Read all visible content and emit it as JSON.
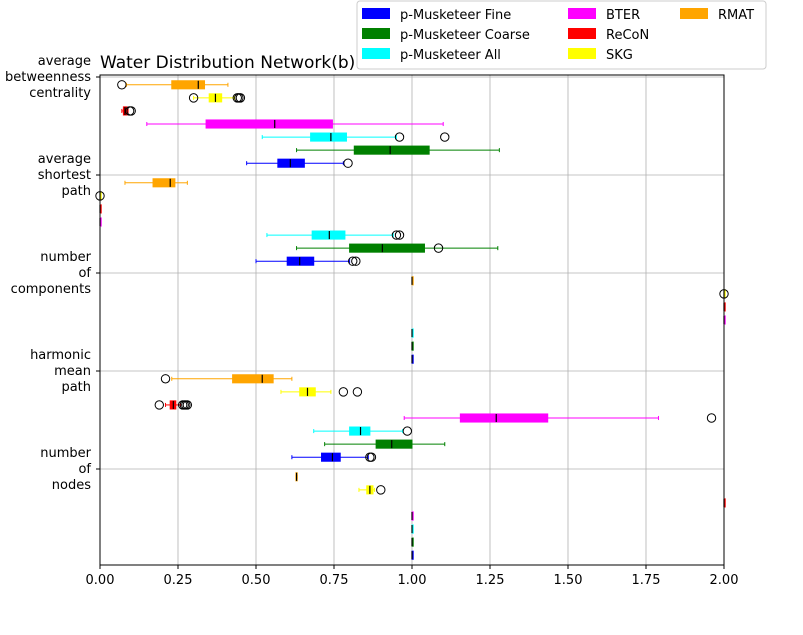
{
  "chart_data": {
    "type": "boxplot",
    "title": "Water Distribution Network(b)",
    "xlabel": "",
    "ylabel": "",
    "xlim": [
      0,
      2
    ],
    "xticks": [
      "0.00",
      "0.25",
      "0.50",
      "0.75",
      "1.00",
      "1.25",
      "1.50",
      "1.75",
      "2.00"
    ],
    "grid": true,
    "legend_position": "top-right, above axes",
    "series": [
      {
        "name": "p-Musketeer Fine",
        "color": "#0000ff"
      },
      {
        "name": "p-Musketeer Coarse",
        "color": "#008000"
      },
      {
        "name": "p-Musketeer All",
        "color": "#00ffff"
      },
      {
        "name": "BTER",
        "color": "#ff00ff"
      },
      {
        "name": "ReCoN",
        "color": "#ff0000"
      },
      {
        "name": "SKG",
        "color": "#ffff00"
      },
      {
        "name": "RMAT",
        "color": "#ffa500"
      }
    ],
    "groups": [
      {
        "label": "average betweenness centrality",
        "label_lines": [
          "average",
          "betweenness",
          "centrality"
        ],
        "boxes": [
          {
            "series": "RMAT",
            "lw": 0.085,
            "q1": 0.23,
            "med": 0.315,
            "q3": 0.335,
            "hw": 0.41,
            "out": [
              0.07
            ]
          },
          {
            "series": "SKG",
            "lw": 0.3,
            "q1": 0.35,
            "med": 0.37,
            "q3": 0.39,
            "hw": 0.43,
            "out": [
              0.3,
              0.44,
              0.445,
              0.45
            ]
          },
          {
            "series": "ReCoN",
            "lw": 0.07,
            "q1": 0.075,
            "med": 0.08,
            "q3": 0.087,
            "hw": 0.09,
            "out": [
              0.095,
              0.1
            ]
          },
          {
            "series": "BTER",
            "lw": 0.15,
            "q1": 0.34,
            "med": 0.56,
            "q3": 0.745,
            "hw": 1.1,
            "out": []
          },
          {
            "series": "p-Musketeer All",
            "lw": 0.52,
            "q1": 0.675,
            "med": 0.74,
            "q3": 0.79,
            "hw": 0.95,
            "out": [
              0.96,
              1.105
            ]
          },
          {
            "series": "p-Musketeer Coarse",
            "lw": 0.63,
            "q1": 0.815,
            "med": 0.93,
            "q3": 1.055,
            "hw": 1.28,
            "out": []
          },
          {
            "series": "p-Musketeer Fine",
            "lw": 0.47,
            "q1": 0.57,
            "med": 0.61,
            "q3": 0.655,
            "hw": 0.78,
            "out": [
              0.795
            ]
          }
        ]
      },
      {
        "label": "average shortest path",
        "label_lines": [
          "average",
          "shortest",
          "path"
        ],
        "boxes": [
          {
            "series": "RMAT",
            "lw": 0.08,
            "q1": 0.17,
            "med": 0.225,
            "q3": 0.24,
            "hw": 0.28,
            "out": []
          },
          {
            "series": "SKG",
            "lw": 0.0,
            "q1": 0.0,
            "med": 0.0,
            "q3": 0.0,
            "hw": 0.0,
            "out": [
              0.0
            ]
          },
          {
            "series": "ReCoN",
            "lw": 0.0,
            "q1": 0.0,
            "med": 0.0,
            "q3": 0.001,
            "hw": 0.001,
            "out": []
          },
          {
            "series": "BTER",
            "lw": 0.0,
            "q1": 0.0,
            "med": 0.0,
            "q3": 0.001,
            "hw": 0.001,
            "out": []
          },
          {
            "series": "p-Musketeer All",
            "lw": 0.535,
            "q1": 0.68,
            "med": 0.735,
            "q3": 0.785,
            "hw": 0.94,
            "out": [
              0.95,
              0.96
            ]
          },
          {
            "series": "p-Musketeer Coarse",
            "lw": 0.63,
            "q1": 0.8,
            "med": 0.905,
            "q3": 1.04,
            "hw": 1.275,
            "out": [
              1.085
            ]
          },
          {
            "series": "p-Musketeer Fine",
            "lw": 0.5,
            "q1": 0.6,
            "med": 0.64,
            "q3": 0.685,
            "hw": 0.8,
            "out": [
              0.81,
              0.82
            ]
          }
        ]
      },
      {
        "label": "number of components",
        "label_lines": [
          "number",
          "of",
          "components"
        ],
        "boxes": [
          {
            "series": "RMAT",
            "lw": 1.0,
            "q1": 1.0,
            "med": 1.0,
            "q3": 1.001,
            "hw": 1.001,
            "out": []
          },
          {
            "series": "SKG",
            "lw": 2.0,
            "q1": 2.0,
            "med": 2.0,
            "q3": 2.0,
            "hw": 2.0,
            "out": [
              2.0
            ]
          },
          {
            "series": "ReCoN",
            "lw": 2.0,
            "q1": 2.0,
            "med": 2.0,
            "q3": 2.001,
            "hw": 2.001,
            "out": []
          },
          {
            "series": "BTER",
            "lw": 2.0,
            "q1": 2.0,
            "med": 2.0,
            "q3": 2.001,
            "hw": 2.001,
            "out": []
          },
          {
            "series": "p-Musketeer All",
            "lw": 1.0,
            "q1": 1.0,
            "med": 1.0,
            "q3": 1.001,
            "hw": 1.001,
            "out": []
          },
          {
            "series": "p-Musketeer Coarse",
            "lw": 1.0,
            "q1": 1.0,
            "med": 1.0,
            "q3": 1.001,
            "hw": 1.001,
            "out": []
          },
          {
            "series": "p-Musketeer Fine",
            "lw": 1.0,
            "q1": 1.0,
            "med": 1.0,
            "q3": 1.001,
            "hw": 1.001,
            "out": []
          }
        ]
      },
      {
        "label": "harmonic mean path",
        "label_lines": [
          "harmonic",
          "mean",
          "path"
        ],
        "boxes": [
          {
            "series": "RMAT",
            "lw": 0.23,
            "q1": 0.425,
            "med": 0.52,
            "q3": 0.555,
            "hw": 0.615,
            "out": [
              0.21
            ]
          },
          {
            "series": "SKG",
            "lw": 0.58,
            "q1": 0.64,
            "med": 0.665,
            "q3": 0.69,
            "hw": 0.74,
            "out": [
              0.78,
              0.825
            ]
          },
          {
            "series": "ReCoN",
            "lw": 0.21,
            "q1": 0.225,
            "med": 0.235,
            "q3": 0.243,
            "hw": 0.258,
            "out": [
              0.19,
              0.265,
              0.27,
              0.275,
              0.28
            ]
          },
          {
            "series": "BTER",
            "lw": 0.975,
            "q1": 1.155,
            "med": 1.27,
            "q3": 1.435,
            "hw": 1.79,
            "out": [
              1.96
            ]
          },
          {
            "series": "p-Musketeer All",
            "lw": 0.685,
            "q1": 0.8,
            "med": 0.835,
            "q3": 0.865,
            "hw": 0.97,
            "out": [
              0.985
            ]
          },
          {
            "series": "p-Musketeer Coarse",
            "lw": 0.72,
            "q1": 0.885,
            "med": 0.935,
            "q3": 1.0,
            "hw": 1.105,
            "out": []
          },
          {
            "series": "p-Musketeer Fine",
            "lw": 0.615,
            "q1": 0.71,
            "med": 0.745,
            "q3": 0.77,
            "hw": 0.86,
            "out": [
              0.865,
              0.87
            ]
          }
        ]
      },
      {
        "label": "number of nodes",
        "label_lines": [
          "number",
          "of",
          "nodes"
        ],
        "boxes": [
          {
            "series": "RMAT",
            "lw": 0.628,
            "q1": 0.628,
            "med": 0.63,
            "q3": 0.632,
            "hw": 0.632,
            "out": []
          },
          {
            "series": "SKG",
            "lw": 0.83,
            "q1": 0.855,
            "med": 0.865,
            "q3": 0.875,
            "hw": 0.88,
            "out": [
              0.9
            ]
          },
          {
            "series": "ReCoN",
            "lw": 2.0,
            "q1": 2.0,
            "med": 2.0,
            "q3": 2.001,
            "hw": 2.001,
            "out": []
          },
          {
            "series": "BTER",
            "lw": 1.0,
            "q1": 1.0,
            "med": 1.0,
            "q3": 1.001,
            "hw": 1.001,
            "out": []
          },
          {
            "series": "p-Musketeer All",
            "lw": 1.0,
            "q1": 1.0,
            "med": 1.0,
            "q3": 1.001,
            "hw": 1.001,
            "out": []
          },
          {
            "series": "p-Musketeer Coarse",
            "lw": 1.0,
            "q1": 1.0,
            "med": 1.0,
            "q3": 1.001,
            "hw": 1.001,
            "out": []
          },
          {
            "series": "p-Musketeer Fine",
            "lw": 1.0,
            "q1": 1.0,
            "med": 1.0,
            "q3": 1.001,
            "hw": 1.001,
            "out": []
          }
        ]
      }
    ]
  }
}
